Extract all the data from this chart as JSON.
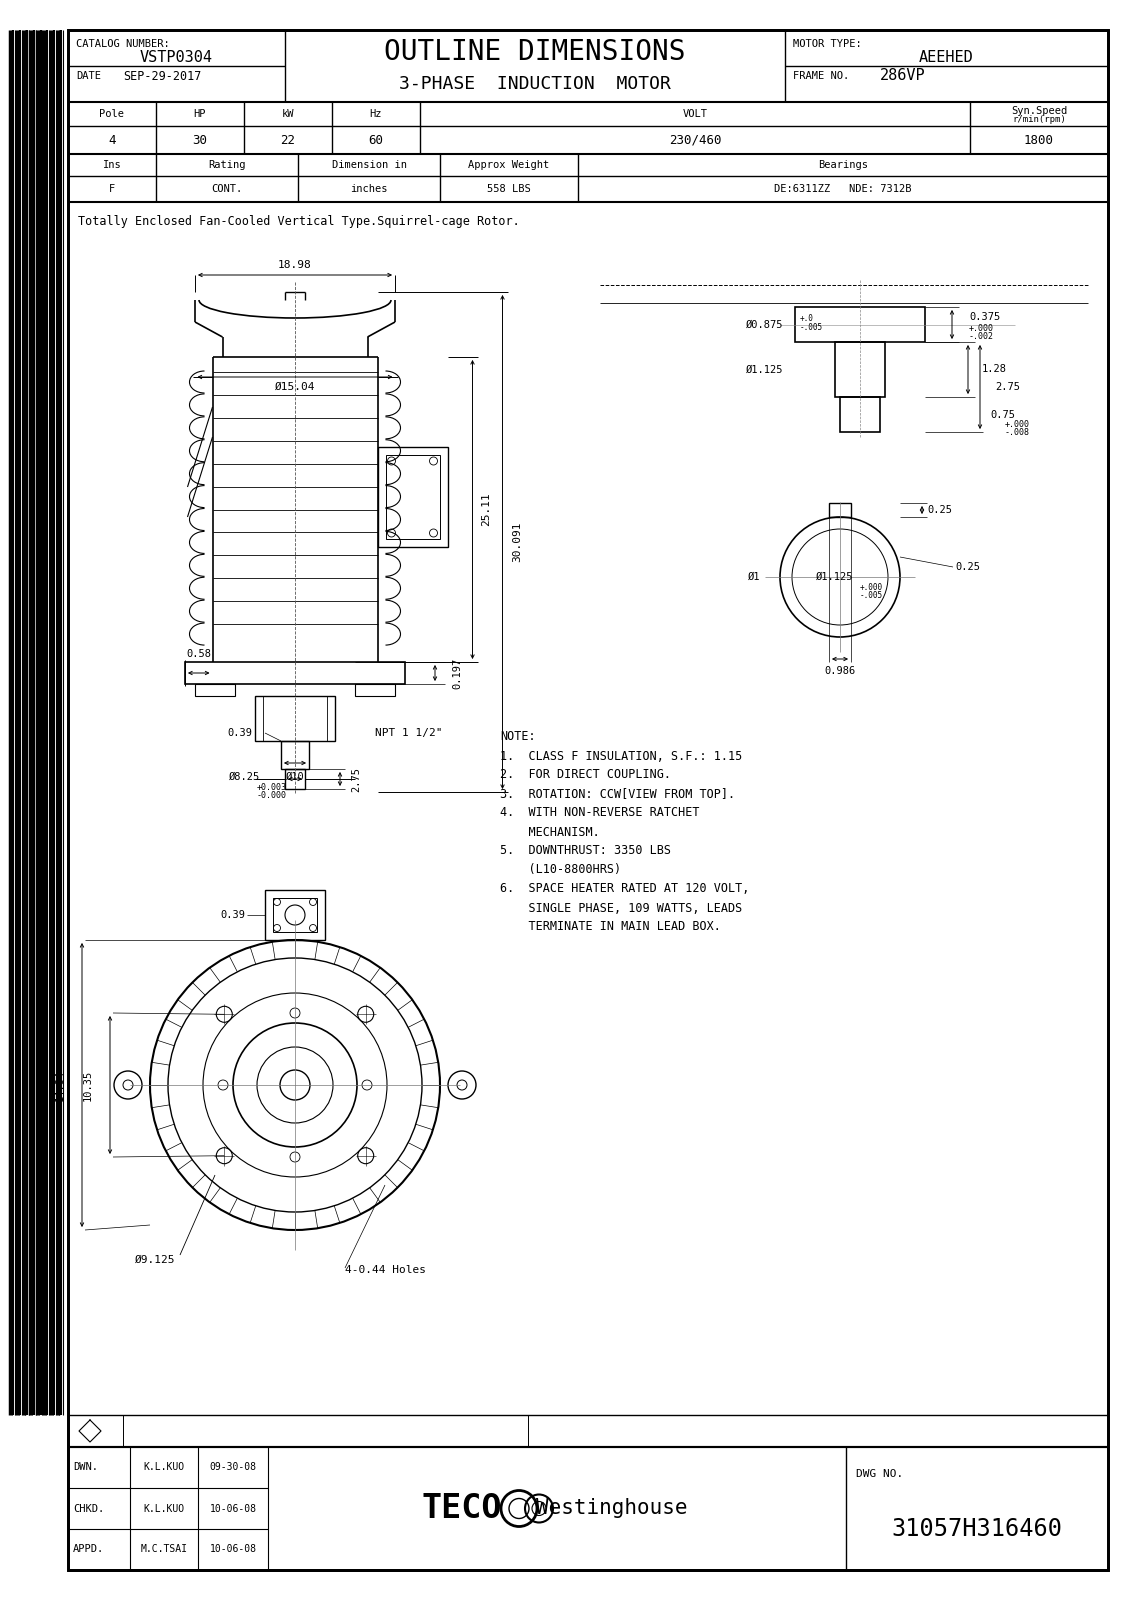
{
  "page_bg": "#ffffff",
  "line_color": "#000000",
  "catalog_label": "CATALOG NUMBER:",
  "catalog_value": "VSTP0304",
  "date_label": "DATE",
  "date_value": "SEP-29-2017",
  "motor_type_label": "MOTOR TYPE:",
  "motor_type_value": "AEEHED",
  "frame_label": "FRAME NO.",
  "frame_value": "286VP",
  "title_main": "OUTLINE DIMENSIONS",
  "title_sub": "3-PHASE  INDUCTION  MOTOR",
  "table1_headers": [
    "Pole",
    "HP",
    "kW",
    "Hz",
    "VOLT",
    "Syn.Speed\nr/min(rpm)"
  ],
  "table1_values": [
    "4",
    "30",
    "22",
    "60",
    "230/460",
    "1800"
  ],
  "table2_headers": [
    "Ins",
    "Rating",
    "Dimension in",
    "Approx Weight",
    "Bearings"
  ],
  "table2_values": [
    "F",
    "CONT.",
    "inches",
    "558 LBS",
    "DE:6311ZZ   NDE: 7312B"
  ],
  "description": "Totally Enclosed Fan-Cooled Vertical Type.Squirrel-cage Rotor.",
  "notes": [
    "NOTE:",
    "1.  CLASS F INSULATION, S.F.: 1.15",
    "2.  FOR DIRECT COUPLING.",
    "3.  ROTATION: CCW[VIEW FROM TOP].",
    "4.  WITH NON-REVERSE RATCHET",
    "    MECHANISM.",
    "5.  DOWNTHRUST: 3350 LBS",
    "    (L10-8800HRS)",
    "6.  SPACE HEATER RATED AT 120 VOLT,",
    "    SINGLE PHASE, 109 WATTS, LEADS",
    "    TERMINATE IN MAIN LEAD BOX."
  ],
  "dwn_label": "DWN.",
  "dwn_name": "K.L.KUO",
  "dwn_date": "09-30-08",
  "chkd_label": "CHKD.",
  "chkd_name": "K.L.KUO",
  "chkd_date": "10-06-08",
  "appd_label": "APPD.",
  "appd_name": "M.C.TSAI",
  "appd_date": "10-06-08",
  "dwg_no_label": "DWG NO.",
  "dwg_no_value": "31057H316460"
}
